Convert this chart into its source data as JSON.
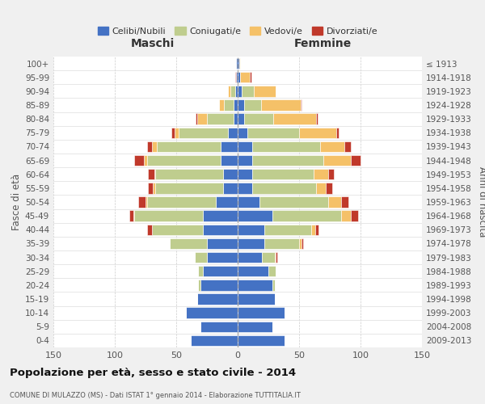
{
  "age_groups": [
    "0-4",
    "5-9",
    "10-14",
    "15-19",
    "20-24",
    "25-29",
    "30-34",
    "35-39",
    "40-44",
    "45-49",
    "50-54",
    "55-59",
    "60-64",
    "65-69",
    "70-74",
    "75-79",
    "80-84",
    "85-89",
    "90-94",
    "95-99",
    "100+"
  ],
  "birth_years": [
    "2009-2013",
    "2004-2008",
    "1999-2003",
    "1994-1998",
    "1989-1993",
    "1984-1988",
    "1979-1983",
    "1974-1978",
    "1969-1973",
    "1964-1968",
    "1959-1963",
    "1954-1958",
    "1949-1953",
    "1944-1948",
    "1939-1943",
    "1934-1938",
    "1929-1933",
    "1924-1928",
    "1919-1923",
    "1914-1918",
    "≤ 1913"
  ],
  "males": {
    "celibi": [
      38,
      30,
      42,
      33,
      30,
      28,
      25,
      25,
      28,
      28,
      18,
      12,
      12,
      14,
      14,
      8,
      3,
      3,
      2,
      1,
      1
    ],
    "coniugati": [
      0,
      0,
      0,
      0,
      2,
      4,
      10,
      30,
      42,
      56,
      56,
      55,
      55,
      60,
      52,
      40,
      22,
      8,
      4,
      0,
      0
    ],
    "vedovi": [
      0,
      0,
      0,
      0,
      0,
      0,
      0,
      0,
      0,
      1,
      1,
      2,
      1,
      2,
      4,
      3,
      8,
      4,
      2,
      0,
      0
    ],
    "divorziati": [
      0,
      0,
      0,
      0,
      0,
      0,
      0,
      0,
      4,
      3,
      6,
      4,
      5,
      8,
      4,
      3,
      1,
      0,
      0,
      1,
      0
    ]
  },
  "females": {
    "celibi": [
      38,
      28,
      38,
      30,
      28,
      25,
      20,
      22,
      22,
      28,
      18,
      12,
      12,
      12,
      12,
      8,
      5,
      5,
      3,
      2,
      1
    ],
    "coniugati": [
      0,
      0,
      0,
      0,
      2,
      6,
      10,
      28,
      38,
      56,
      56,
      52,
      50,
      58,
      55,
      42,
      24,
      14,
      10,
      0,
      0
    ],
    "vedovi": [
      0,
      0,
      0,
      0,
      0,
      0,
      1,
      2,
      3,
      8,
      10,
      8,
      12,
      22,
      20,
      30,
      35,
      32,
      18,
      8,
      1
    ],
    "divorziati": [
      0,
      0,
      0,
      0,
      0,
      0,
      1,
      1,
      3,
      6,
      6,
      5,
      4,
      8,
      5,
      2,
      1,
      1,
      0,
      1,
      0
    ]
  },
  "colors": {
    "celibi": "#4472C4",
    "coniugati": "#BFCD8E",
    "vedovi": "#F5C168",
    "divorziati": "#C0392B"
  },
  "xlim": 150,
  "title": "Popolazione per età, sesso e stato civile - 2014",
  "subtitle": "COMUNE DI MULAZZO (MS) - Dati ISTAT 1° gennaio 2014 - Elaborazione TUTTITALIA.IT",
  "xlabel_left": "Maschi",
  "xlabel_right": "Femmine",
  "ylabel_left": "Fasce di età",
  "ylabel_right": "Anni di nascita",
  "bg_color": "#f0f0f0",
  "plot_bg_color": "#ffffff",
  "legend_labels": [
    "Celibi/Nubili",
    "Coniugati/e",
    "Vedovi/e",
    "Divorziati/e"
  ]
}
